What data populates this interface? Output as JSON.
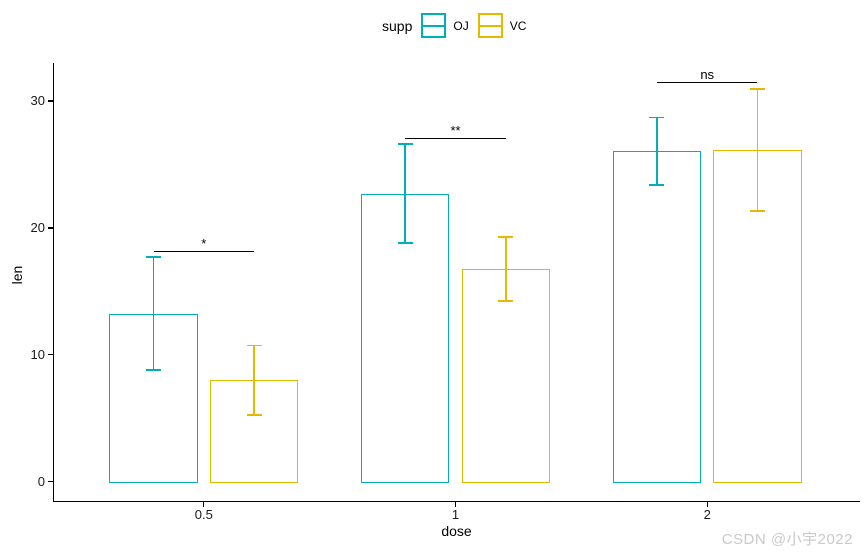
{
  "chart_data": {
    "type": "bar",
    "title": "",
    "xlabel": "dose",
    "ylabel": "len",
    "legend_title": "supp",
    "legend_position": "top",
    "grid": false,
    "bar_style": "outlined, white fill, grouped/dodged, with mean ± sd error bars",
    "categories": [
      "0.5",
      "1",
      "2"
    ],
    "y_ticks": [
      0,
      10,
      20,
      30
    ],
    "ylim": [
      0,
      33.2
    ],
    "series": [
      {
        "name": "OJ",
        "color": "#00AFBB",
        "values": [
          13.23,
          22.7,
          26.06
        ],
        "err_low": [
          8.77,
          18.79,
          23.4
        ],
        "err_high": [
          17.69,
          26.61,
          28.72
        ]
      },
      {
        "name": "VC",
        "color": "#E7B800",
        "values": [
          7.98,
          16.77,
          26.14
        ],
        "err_low": [
          5.23,
          14.25,
          21.34
        ],
        "err_high": [
          10.73,
          19.29,
          30.94
        ]
      }
    ],
    "significance": [
      {
        "group": "0.5",
        "label": "*",
        "y": 18.2
      },
      {
        "group": "1",
        "label": "**",
        "y": 27.1
      },
      {
        "group": "2",
        "label": "ns",
        "y": 31.5
      }
    ]
  },
  "watermark": {
    "text": "CSDN @小宇2022",
    "color": "#c9c9c9"
  }
}
